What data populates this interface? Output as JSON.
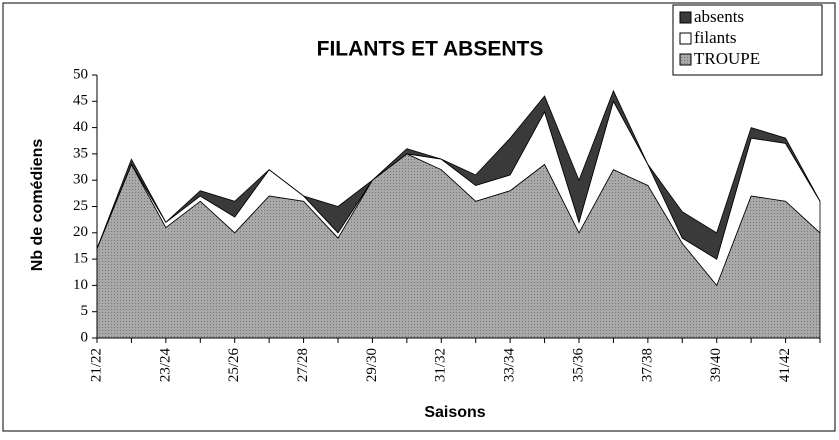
{
  "chart_data": {
    "type": "area",
    "title": "FILANTS ET ABSENTS",
    "y_label": "Nb de comédiens",
    "x_label": "Saisons",
    "categories": [
      "21/22",
      null,
      "23/24",
      null,
      "25/26",
      null,
      "27/28",
      null,
      "29/30",
      null,
      "31/32",
      null,
      "33/34",
      null,
      "35/36",
      null,
      "37/38",
      null,
      "39/40",
      null,
      "41/42",
      null
    ],
    "series": [
      {
        "name": "TROUPE",
        "color": "#a9a9a9",
        "values": [
          17,
          33,
          21,
          26,
          20,
          27,
          26,
          19,
          30,
          35,
          32,
          26,
          28,
          33,
          20,
          32,
          29,
          18,
          10,
          27,
          26,
          20
        ]
      },
      {
        "name": "filants",
        "color": "#ffffff",
        "values": [
          0,
          0,
          1,
          1,
          3,
          5,
          1,
          1,
          0,
          0,
          2,
          3,
          3,
          10,
          2,
          13,
          4,
          1,
          5,
          11,
          11,
          6
        ]
      },
      {
        "name": "absents",
        "color": "#3a3a3a",
        "values": [
          0,
          1,
          0,
          1,
          3,
          0,
          0,
          5,
          0,
          1,
          0,
          2,
          7,
          3,
          8,
          2,
          0,
          5,
          5,
          2,
          1,
          0
        ]
      }
    ],
    "ylim": [
      0,
      50
    ],
    "yticks": [
      0,
      5,
      10,
      15,
      20,
      25,
      30,
      35,
      40,
      45,
      50
    ],
    "legend": "top-right"
  }
}
